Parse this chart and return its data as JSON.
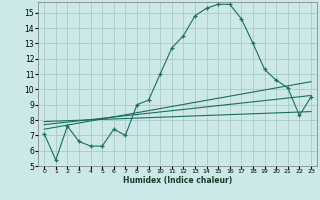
{
  "xlabel": "Humidex (Indice chaleur)",
  "bg_color": "#cce8e8",
  "grid_color": "#aacaca",
  "line_color": "#1a6e5e",
  "xlim": [
    -0.5,
    23.5
  ],
  "ylim": [
    5,
    15.7
  ],
  "yticks": [
    5,
    6,
    7,
    8,
    9,
    10,
    11,
    12,
    13,
    14,
    15
  ],
  "xticks": [
    0,
    1,
    2,
    3,
    4,
    5,
    6,
    7,
    8,
    9,
    10,
    11,
    12,
    13,
    14,
    15,
    16,
    17,
    18,
    19,
    20,
    21,
    22,
    23
  ],
  "line1_x": [
    0,
    1,
    2,
    3,
    4,
    5,
    6,
    7,
    8,
    9,
    10,
    11,
    12,
    13,
    14,
    15,
    16,
    17,
    18,
    19,
    20,
    21,
    22,
    23
  ],
  "line1_y": [
    7.1,
    5.4,
    7.6,
    6.6,
    6.3,
    6.3,
    7.4,
    7.0,
    9.0,
    9.3,
    11.0,
    12.7,
    13.5,
    14.8,
    15.3,
    15.55,
    15.55,
    14.6,
    13.0,
    11.3,
    10.6,
    10.1,
    8.3,
    9.5
  ],
  "line2_x": [
    0,
    23
  ],
  "line2_y": [
    7.4,
    10.5
  ],
  "line3_x": [
    0,
    23
  ],
  "line3_y": [
    7.7,
    9.6
  ],
  "line4_x": [
    0,
    23
  ],
  "line4_y": [
    7.9,
    8.55
  ]
}
